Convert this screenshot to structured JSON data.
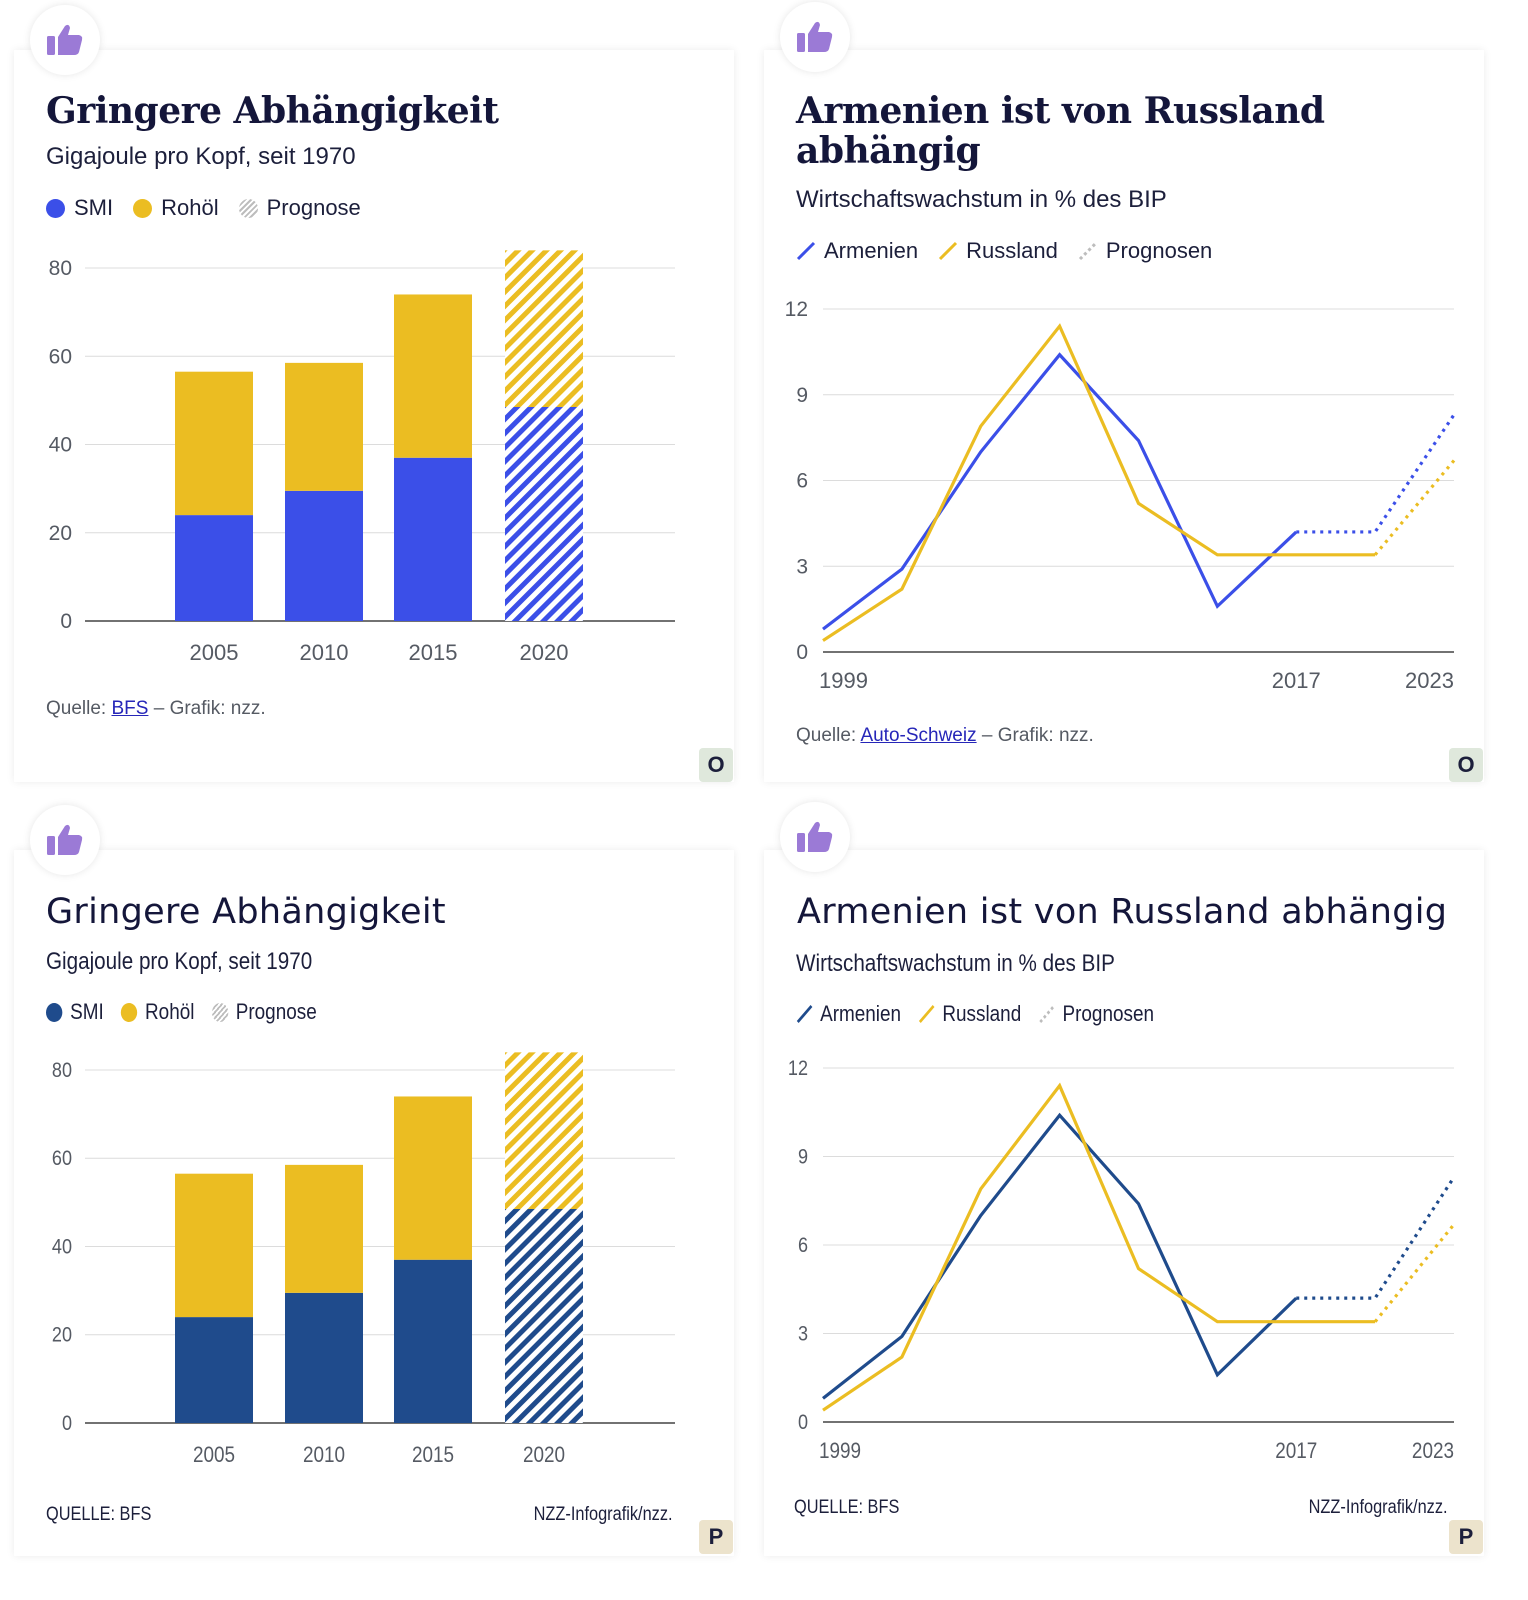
{
  "panels": [
    {
      "id": "p1",
      "title": "Gringere Abhängigkeit",
      "subtitle": "Gigajoule pro Kopf, seit 1970",
      "legend": [
        "SMI",
        "Rohöl",
        "Prognose"
      ],
      "source_prefix": "Quelle:",
      "source_link": "BFS",
      "source_suffix": "– Grafik: nzz.",
      "corner": "O",
      "colors": {
        "smi": "#3b4fe8",
        "oil": "#ebbd22"
      }
    },
    {
      "id": "p2",
      "title_line1": "Armenien ist von Russland",
      "title_line2": "abhängig",
      "subtitle": "Wirtschaftswachstum in % des BIP",
      "legend": [
        "Armenien",
        "Russland",
        "Prognosen"
      ],
      "source_prefix": "Quelle:",
      "source_link": "Auto-Schweiz",
      "source_suffix": "– Grafik: nzz.",
      "corner": "O",
      "colors": {
        "armenia": "#3b4fe8",
        "russia": "#ebbd22"
      }
    },
    {
      "id": "p3",
      "title": "Gringere Abhängigkeit",
      "subtitle": "Gigajoule pro Kopf, seit 1970",
      "legend": [
        "SMI",
        "Rohöl",
        "Prognose"
      ],
      "source": "QUELLE: BFS",
      "credit": "NZZ-Infografik/nzz.",
      "corner": "P",
      "colors": {
        "smi": "#1f4b8c",
        "oil": "#ebbd22"
      }
    },
    {
      "id": "p4",
      "title": "Armenien ist von Russland abhängig",
      "subtitle": "Wirtschaftswachstum in % des BIP",
      "legend": [
        "Armenien",
        "Russland",
        "Prognosen"
      ],
      "source": "QUELLE: BFS",
      "credit": "NZZ-Infografik/nzz.",
      "corner": "P",
      "colors": {
        "armenia": "#1f4b8c",
        "russia": "#ebbd22"
      }
    }
  ],
  "chart_data": [
    {
      "type": "bar",
      "stacked": true,
      "categories": [
        "2005",
        "2010",
        "2015",
        "2020"
      ],
      "series": [
        {
          "name": "SMI",
          "values": [
            24,
            29.5,
            37,
            48.5
          ]
        },
        {
          "name": "Rohöl",
          "values": [
            32.5,
            29,
            37,
            35.5
          ]
        }
      ],
      "forecast_categories": [
        "2020"
      ],
      "yticks": [
        0,
        20,
        40,
        60,
        80
      ],
      "ylim": [
        0,
        80
      ]
    },
    {
      "type": "line",
      "x": [
        1999,
        2002,
        2005,
        2008,
        2011,
        2014,
        2017,
        2020,
        2023
      ],
      "series": [
        {
          "name": "Armenien",
          "values": [
            0.8,
            2.9,
            7.0,
            10.4,
            7.4,
            1.6,
            4.2,
            4.2,
            8.3
          ]
        },
        {
          "name": "Russland",
          "values": [
            0.4,
            2.2,
            7.9,
            11.4,
            5.2,
            3.4,
            3.4,
            3.4,
            6.7
          ]
        }
      ],
      "series_forecast_from_index": [
        6,
        7
      ],
      "xtick_labels": [
        "1999",
        "2017",
        "2023"
      ],
      "yticks": [
        0,
        3,
        6,
        9,
        12
      ],
      "ylim": [
        0,
        12
      ]
    }
  ]
}
